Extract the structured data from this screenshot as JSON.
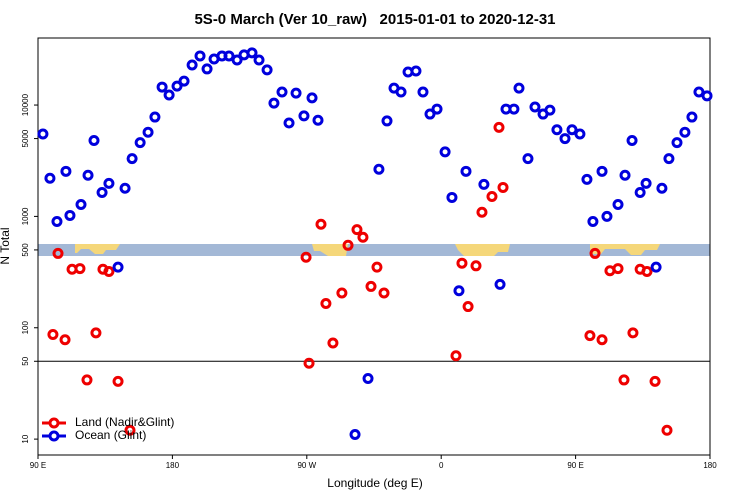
{
  "chart_data": {
    "type": "scatter",
    "title": "5S-0 March (Ver 10_raw)   2015-01-01 to 2020-12-31",
    "x_label": "Longitude (deg E)",
    "y_label": "N Total",
    "xlim": [
      90,
      540
    ],
    "xticks": [
      {
        "value": 90,
        "label": "90 E"
      },
      {
        "value": 180,
        "label": "180"
      },
      {
        "value": 270,
        "label": "90 W"
      },
      {
        "value": 360,
        "label": "0"
      },
      {
        "value": 450,
        "label": "90 E"
      },
      {
        "value": 540,
        "label": "180"
      }
    ],
    "ylim": [
      7.2,
      40000
    ],
    "yticks": [
      10,
      50,
      100,
      500,
      1000,
      5000,
      10000
    ],
    "y_log": true,
    "reference_line": 50,
    "legend_position": "bottom-left",
    "series": [
      {
        "name": "Land (Nadir&Glint)",
        "color": "#ee0000",
        "x": [
          100,
          103.4,
          108.1,
          112.8,
          118.1,
          122.8,
          128.8,
          133.5,
          137.5,
          143.6,
          151.6,
          269.5,
          271.5,
          279.5,
          282.8,
          287.5,
          293.5,
          297.6,
          303.6,
          307.6,
          313,
          317,
          321.7,
          369.9,
          373.9,
          378,
          383.3,
          387.3,
          394,
          398.7,
          401.4,
          459.6,
          463,
          467.7,
          473,
          478.4,
          482.4,
          488.4,
          493.2,
          497.8,
          503.2,
          511.2
        ],
        "values": [
          87,
          465,
          78,
          335,
          340,
          34,
          90,
          335,
          320,
          33,
          12,
          430,
          48,
          850,
          165,
          73,
          205,
          550,
          760,
          650,
          235,
          350,
          205,
          56,
          380,
          155,
          360,
          1090,
          1510,
          6300,
          1820,
          85,
          465,
          78,
          325,
          340,
          34,
          90,
          335,
          320,
          33,
          12
        ]
      },
      {
        "name": "Ocean (Glint)",
        "color": "#0000dd",
        "x": [
          93.3,
          98,
          102.7,
          108.7,
          111.4,
          118.8,
          123.5,
          127.5,
          132.9,
          137.5,
          143.6,
          148.3,
          153,
          158.4,
          163.7,
          168.3,
          173.1,
          177.8,
          183.1,
          187.8,
          193.2,
          198.5,
          203.2,
          207.9,
          213.2,
          217.9,
          223.3,
          228,
          233.3,
          238,
          243.4,
          248,
          253.4,
          258.1,
          262.8,
          268.1,
          273.5,
          277.5,
          302.3,
          311,
          318.3,
          323.7,
          328.4,
          333.1,
          337.8,
          343.1,
          347.8,
          352.5,
          357.2,
          362.6,
          367.2,
          371.9,
          376.6,
          388.6,
          399.4,
          403.4,
          408.7,
          412.1,
          418.1,
          422.8,
          428.2,
          432.8,
          437.5,
          442.9,
          447.6,
          452.9,
          457.6,
          461.6,
          467.7,
          471,
          478.4,
          483.1,
          487.8,
          493.2,
          497.2,
          503.9,
          507.8,
          512.5,
          517.9,
          523.2,
          527.9,
          532.6,
          538
        ],
        "values": [
          5500,
          2200,
          900,
          2540,
          1020,
          1280,
          2340,
          4800,
          1640,
          1980,
          350,
          1790,
          3300,
          4600,
          5700,
          7800,
          14500,
          12300,
          14800,
          16400,
          22900,
          27600,
          21100,
          25900,
          27600,
          27600,
          25400,
          28200,
          29400,
          25400,
          20700,
          10400,
          13100,
          6900,
          12800,
          8000,
          11600,
          7300,
          11,
          35,
          2650,
          7200,
          14200,
          13100,
          19800,
          20200,
          13100,
          8300,
          9200,
          3800,
          1480,
          215,
          2540,
          1940,
          245,
          9200,
          9200,
          14200,
          3300,
          9600,
          8300,
          9000,
          6000,
          5000,
          6000,
          5500,
          2150,
          900,
          2540,
          1000,
          1280,
          2340,
          4800,
          1640,
          1980,
          350,
          1790,
          3300,
          4600,
          5700,
          7800,
          13100,
          12100
        ]
      }
    ]
  }
}
